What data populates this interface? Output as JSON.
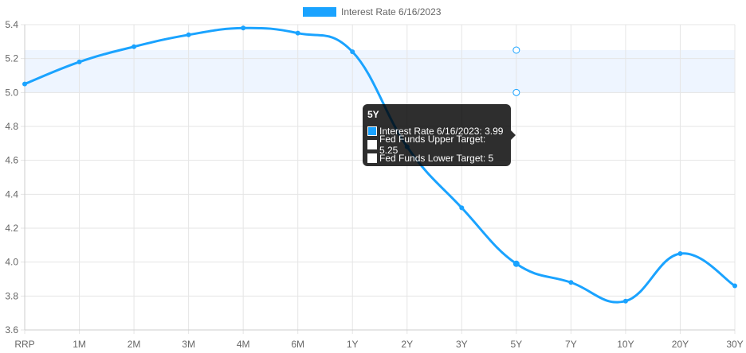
{
  "chart_data": {
    "type": "line",
    "categories": [
      "RRP",
      "1M",
      "2M",
      "3M",
      "4M",
      "6M",
      "1Y",
      "2Y",
      "3Y",
      "5Y",
      "7Y",
      "10Y",
      "20Y",
      "30Y"
    ],
    "series": [
      {
        "name": "Interest Rate 6/16/2023",
        "values": [
          5.05,
          5.18,
          5.27,
          5.34,
          5.38,
          5.35,
          5.24,
          4.68,
          4.32,
          3.99,
          3.88,
          3.77,
          4.05,
          3.86
        ],
        "color": "#1aa3ff"
      }
    ],
    "band": {
      "upper": 5.25,
      "lower": 5.0,
      "at_category": "5Y",
      "fill": "#eef5ff"
    },
    "ylim": [
      3.6,
      5.4
    ],
    "yticks": [
      "3.6",
      "3.8",
      "4.0",
      "4.2",
      "4.4",
      "4.6",
      "4.8",
      "5.0",
      "5.2",
      "5.4"
    ],
    "grid": true,
    "legend_position": "top-center"
  },
  "legend": {
    "label": "Interest Rate 6/16/2023"
  },
  "tooltip": {
    "title": "5Y",
    "rows": [
      "Interest Rate 6/16/2023: 3.99",
      "Fed Funds Upper Target: 5.25",
      "Fed Funds Lower Target: 5"
    ],
    "colors": [
      "#1aa3ff",
      "#ffffff",
      "#ffffff"
    ]
  }
}
